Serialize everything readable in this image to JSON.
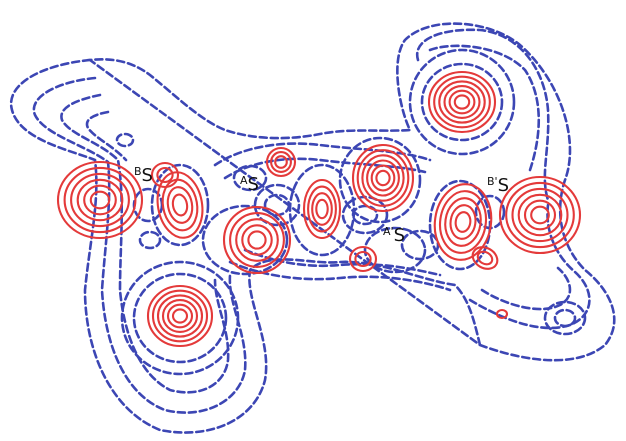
{
  "colors": {
    "negative_contour": "#3c46b4",
    "positive_contour": "#e43a3a",
    "background": "#ffffff"
  },
  "atom_labels": [
    {
      "id": "BS",
      "sup": "B",
      "main": "S"
    },
    {
      "id": "AS",
      "sup": "A",
      "main": "S"
    },
    {
      "id": "A'S",
      "sup": "A'",
      "main": "S"
    },
    {
      "id": "B'S",
      "sup": "B'",
      "main": "S"
    }
  ]
}
